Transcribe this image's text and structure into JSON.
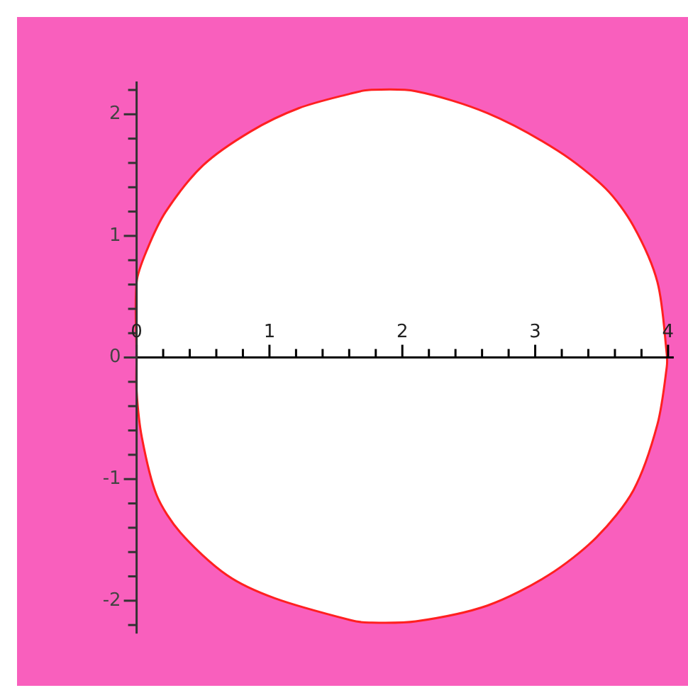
{
  "chart_data": {
    "type": "area",
    "bands": [
      {
        "axis": "x",
        "from": -0.9,
        "to": 4.15,
        "color": "#f95fbd"
      }
    ],
    "xlim": [
      -0.9,
      4.15
    ],
    "ylim": [
      -2.7,
      2.8
    ],
    "xticks": [
      0,
      {
        "value": 0.2,
        "label": null
      },
      {
        "value": 0.4,
        "label": null
      },
      {
        "value": 0.6,
        "label": null
      },
      {
        "value": 0.8,
        "label": null
      },
      1,
      {
        "value": 1.2,
        "label": null
      },
      {
        "value": 1.4,
        "label": null
      },
      {
        "value": 1.6,
        "label": null
      },
      {
        "value": 1.8,
        "label": null
      },
      2,
      {
        "value": 2.2,
        "label": null
      },
      {
        "value": 2.4,
        "label": null
      },
      {
        "value": 2.6,
        "label": null
      },
      {
        "value": 2.8,
        "label": null
      },
      3,
      {
        "value": 3.2,
        "label": null
      },
      {
        "value": 3.4,
        "label": null
      },
      {
        "value": 3.6,
        "label": null
      },
      {
        "value": 3.8,
        "label": null
      },
      4
    ],
    "yticks": [
      -2,
      {
        "value": -2.2,
        "label": null
      },
      {
        "value": -1.8,
        "label": null
      },
      {
        "value": -1.6,
        "label": null
      },
      {
        "value": -1.4,
        "label": null
      },
      {
        "value": -1.2,
        "label": null
      },
      -1,
      {
        "value": -0.8,
        "label": null
      },
      {
        "value": -0.6,
        "label": null
      },
      {
        "value": -0.4,
        "label": null
      },
      {
        "value": -0.2,
        "label": null
      },
      0,
      {
        "value": 0.2,
        "label": null
      },
      {
        "value": 0.4,
        "label": null
      },
      {
        "value": 0.6,
        "label": null
      },
      {
        "value": 0.8,
        "label": null
      },
      1,
      {
        "value": 1.2,
        "label": null
      },
      {
        "value": 1.4,
        "label": null
      },
      {
        "value": 1.6,
        "label": null
      },
      {
        "value": 1.8,
        "label": null
      },
      2,
      {
        "value": 2.2,
        "label": null
      }
    ],
    "grid": false,
    "legend": false,
    "marker": "none",
    "line_style": "solid",
    "series": [
      {
        "color": "#ff2020",
        "x": [
          0,
          0,
          0.08,
          0.22,
          0.5,
          0.86,
          1.22,
          1.61,
          1.75,
          2.1,
          2.64,
          3.17,
          3.53,
          3.74,
          3.92,
          3.99,
          3.99,
          3.92,
          3.74,
          3.46,
          3.1,
          2.64,
          2.1,
          1.75,
          1.61,
          1.04,
          0.68,
          0.33,
          0.15,
          0.04,
          0,
          0
        ],
        "values": [
          0,
          0.62,
          0.89,
          1.2,
          1.58,
          1.86,
          2.05,
          2.17,
          2.2,
          2.19,
          2.01,
          1.7,
          1.39,
          1.08,
          0.62,
          0.03,
          -0.08,
          -0.55,
          -1.09,
          -1.48,
          -1.79,
          -2.04,
          -2.17,
          -2.18,
          -2.16,
          -1.98,
          -1.79,
          -1.44,
          -1.13,
          -0.66,
          -0.28,
          0
        ]
      }
    ]
  }
}
